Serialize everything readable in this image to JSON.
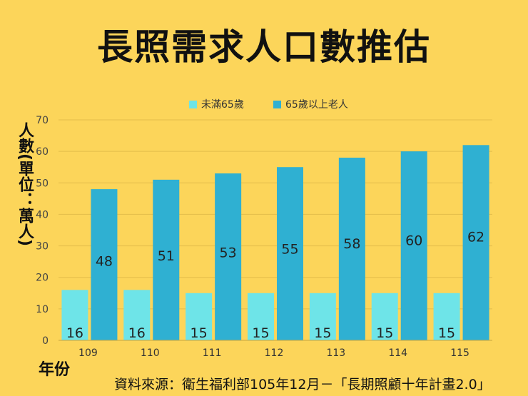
{
  "title": "長照需求人口數推估",
  "ylabel": "人數(單位：萬人)",
  "xlabel": "年份",
  "source": "資料來源：衛生福利部105年12月－「長期照顧十年計畫2.0」",
  "colors": {
    "background": "#fcd55a",
    "series_under65": "#6ee4e8",
    "series_65plus": "#2fb0d2"
  },
  "chart_data": {
    "type": "bar",
    "categories": [
      "109",
      "110",
      "111",
      "112",
      "113",
      "114",
      "115"
    ],
    "series": [
      {
        "name": "未滿65歲",
        "values": [
          16,
          16,
          15,
          15,
          15,
          15,
          15
        ]
      },
      {
        "name": "65歲以上老人",
        "values": [
          48,
          51,
          53,
          55,
          58,
          60,
          62
        ]
      }
    ],
    "yticks": [
      0,
      10,
      20,
      30,
      40,
      50,
      60,
      70
    ],
    "ylim": [
      0,
      70
    ],
    "grid": true,
    "legend": "top-center",
    "data_labels": true
  }
}
